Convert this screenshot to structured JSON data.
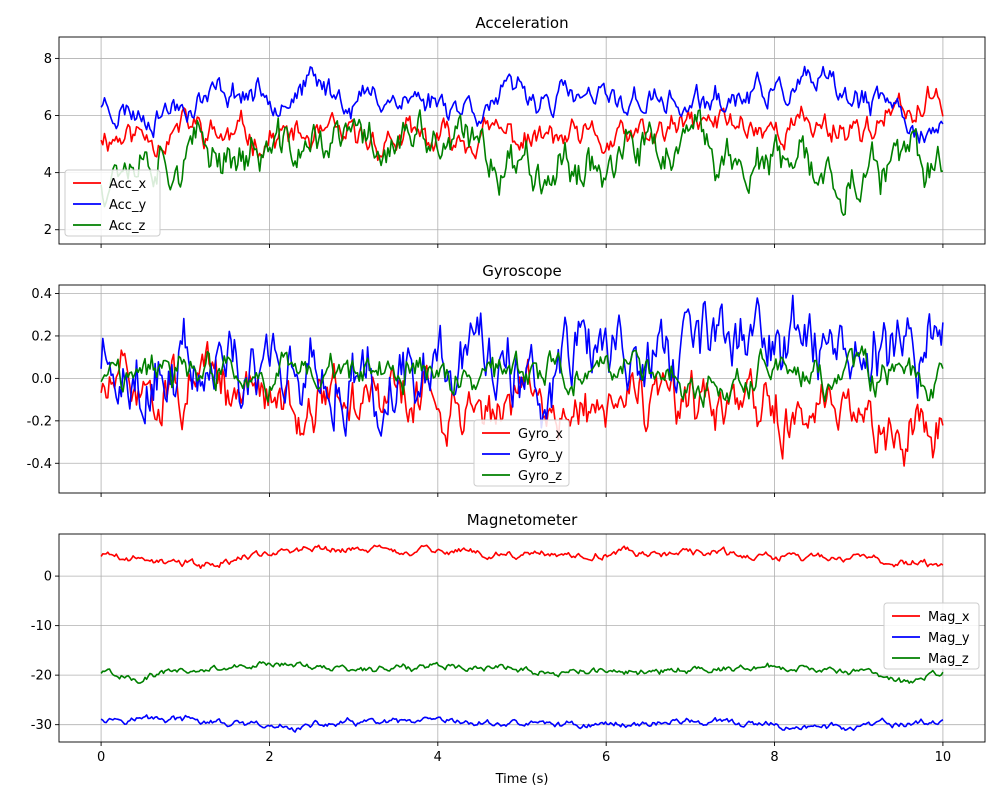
{
  "chart_data": [
    {
      "type": "line",
      "title": "Acceleration",
      "xlabel": "",
      "ylabel": "",
      "xlim": [
        -0.5,
        10.5
      ],
      "ylim": [
        1.5,
        8.75
      ],
      "xticks": [
        0,
        2,
        4,
        6,
        8,
        10
      ],
      "yticks": [
        2,
        4,
        6,
        8
      ],
      "x_tick_labels_shown": false,
      "grid": true,
      "legend_position": "center-left",
      "series": [
        {
          "name": "Acc_x",
          "color": "#ff0000",
          "base": 5.4,
          "amp": 0.55,
          "seed": 11,
          "knots": [
            [
              0,
              5.4
            ],
            [
              0.5,
              5.3
            ],
            [
              1,
              5.6
            ],
            [
              1.5,
              5.2
            ],
            [
              2,
              5.3
            ],
            [
              2.5,
              5.1
            ],
            [
              3,
              5.0
            ],
            [
              3.5,
              5.2
            ],
            [
              4,
              5.0
            ],
            [
              4.5,
              5.3
            ],
            [
              5,
              5.2
            ],
            [
              5.5,
              5.1
            ],
            [
              6,
              5.0
            ],
            [
              6.5,
              5.2
            ],
            [
              7,
              5.6
            ],
            [
              7.5,
              5.8
            ],
            [
              8,
              5.6
            ],
            [
              8.5,
              5.7
            ],
            [
              9,
              5.6
            ],
            [
              9.5,
              6.0
            ],
            [
              10,
              6.4
            ]
          ]
        },
        {
          "name": "Acc_y",
          "color": "#0000ff",
          "base": 6.6,
          "amp": 0.5,
          "seed": 23,
          "knots": [
            [
              0,
              6.5
            ],
            [
              0.5,
              6.1
            ],
            [
              1,
              6.5
            ],
            [
              1.5,
              6.9
            ],
            [
              2,
              6.8
            ],
            [
              2.5,
              7.0
            ],
            [
              3,
              6.6
            ],
            [
              3.5,
              6.7
            ],
            [
              4,
              6.5
            ],
            [
              4.5,
              6.4
            ],
            [
              5,
              6.7
            ],
            [
              5.5,
              6.6
            ],
            [
              6,
              6.4
            ],
            [
              6.5,
              6.6
            ],
            [
              7,
              6.3
            ],
            [
              7.5,
              6.5
            ],
            [
              8,
              6.8
            ],
            [
              8.5,
              7.0
            ],
            [
              9,
              6.4
            ],
            [
              9.5,
              6.2
            ],
            [
              10,
              5.0
            ]
          ]
        },
        {
          "name": "Acc_z",
          "color": "#008000",
          "base": 4.8,
          "amp": 0.8,
          "seed": 37,
          "knots": [
            [
              0,
              3.8
            ],
            [
              0.3,
              5.0
            ],
            [
              1,
              4.6
            ],
            [
              1.5,
              4.8
            ],
            [
              2,
              4.6
            ],
            [
              2.5,
              4.9
            ],
            [
              3,
              5.1
            ],
            [
              3.5,
              5.1
            ],
            [
              4,
              5.0
            ],
            [
              4.5,
              4.7
            ],
            [
              5,
              4.4
            ],
            [
              5.5,
              4.5
            ],
            [
              6,
              4.4
            ],
            [
              6.5,
              4.8
            ],
            [
              7,
              4.9
            ],
            [
              7.5,
              4.4
            ],
            [
              8,
              4.1
            ],
            [
              8.5,
              3.9
            ],
            [
              9,
              3.9
            ],
            [
              9.5,
              4.2
            ],
            [
              10,
              4.0
            ]
          ]
        }
      ]
    },
    {
      "type": "line",
      "title": "Gyroscope",
      "xlabel": "",
      "ylabel": "",
      "xlim": [
        -0.5,
        10.5
      ],
      "ylim": [
        -0.54,
        0.44
      ],
      "xticks": [
        0,
        2,
        4,
        6,
        8,
        10
      ],
      "yticks": [
        -0.4,
        -0.2,
        0.0,
        0.2,
        0.4
      ],
      "x_tick_labels_shown": false,
      "grid": true,
      "legend_position": "lower-center",
      "series": [
        {
          "name": "Gyro_x",
          "color": "#ff0000",
          "base": 0.0,
          "amp": 0.13,
          "seed": 51,
          "knots": [
            [
              0,
              -0.05
            ],
            [
              10,
              -0.2
            ]
          ]
        },
        {
          "name": "Gyro_y",
          "color": "#0000ff",
          "base": 0.0,
          "amp": 0.17,
          "seed": 63,
          "knots": [
            [
              0,
              0.06
            ],
            [
              10,
              0.15
            ]
          ]
        },
        {
          "name": "Gyro_z",
          "color": "#008000",
          "base": 0.0,
          "amp": 0.08,
          "seed": 77,
          "knots": [
            [
              0,
              0.02
            ],
            [
              10,
              0.0
            ]
          ]
        }
      ]
    },
    {
      "type": "line",
      "title": "Magnetometer",
      "xlabel": "Time (s)",
      "ylabel": "",
      "xlim": [
        -0.5,
        10.5
      ],
      "ylim": [
        -33.5,
        8.5
      ],
      "xticks": [
        0,
        2,
        4,
        6,
        8,
        10
      ],
      "yticks": [
        -30,
        -20,
        -10,
        0
      ],
      "x_tick_labels_shown": true,
      "grid": true,
      "legend_position": "center-right",
      "series": [
        {
          "name": "Mag_x",
          "color": "#ff0000",
          "base": 4.3,
          "amp": 0.8,
          "seed": 89,
          "knots": [
            [
              0,
              4.3
            ],
            [
              1.2,
              2.2
            ],
            [
              2,
              5.0
            ],
            [
              3,
              5.5
            ],
            [
              4,
              5.2
            ],
            [
              5,
              4.0
            ],
            [
              6,
              4.5
            ],
            [
              7,
              4.8
            ],
            [
              8,
              3.8
            ],
            [
              9,
              3.6
            ],
            [
              10,
              2.5
            ]
          ]
        },
        {
          "name": "Mag_y",
          "color": "#0000ff",
          "base": -29.8,
          "amp": 0.7,
          "seed": 97,
          "knots": [
            [
              0,
              -28.5
            ],
            [
              1,
              -29.0
            ],
            [
              2,
              -30.8
            ],
            [
              3,
              -29.7
            ],
            [
              4,
              -29.8
            ],
            [
              5,
              -29.8
            ],
            [
              6,
              -30.0
            ],
            [
              7,
              -29.3
            ],
            [
              8,
              -30.4
            ],
            [
              9,
              -30.5
            ],
            [
              10,
              -29.3
            ]
          ]
        },
        {
          "name": "Mag_z",
          "color": "#008000",
          "base": -18.8,
          "amp": 0.7,
          "seed": 101,
          "knots": [
            [
              0,
              -19.4
            ],
            [
              0.4,
              -20.5
            ],
            [
              1,
              -19.2
            ],
            [
              2,
              -17.6
            ],
            [
              3,
              -18.8
            ],
            [
              4,
              -18.0
            ],
            [
              5,
              -18.6
            ],
            [
              5.5,
              -19.5
            ],
            [
              6,
              -19.4
            ],
            [
              7,
              -19.0
            ],
            [
              8,
              -18.2
            ],
            [
              8.5,
              -19.0
            ],
            [
              9,
              -19.0
            ],
            [
              9.6,
              -21.5
            ],
            [
              10,
              -19.5
            ]
          ]
        }
      ]
    }
  ]
}
